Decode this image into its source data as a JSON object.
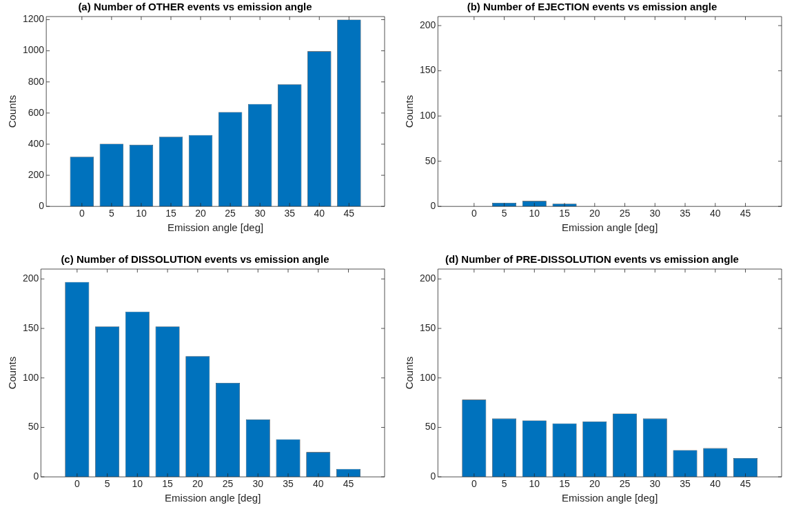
{
  "chart_data": [
    {
      "type": "bar",
      "title": "(a) Number of OTHER events vs emission angle",
      "xlabel": "Emission angle [deg]",
      "ylabel": "Counts",
      "x": [
        0,
        5,
        10,
        15,
        20,
        25,
        30,
        35,
        40,
        45
      ],
      "xlim": [
        -6,
        51
      ],
      "xticks": [
        0,
        5,
        10,
        15,
        20,
        25,
        30,
        35,
        40,
        45
      ],
      "ylim": [
        0,
        1220
      ],
      "yticks": [
        0,
        200,
        400,
        600,
        800,
        1000,
        1200
      ],
      "color": "#0072bd",
      "values": [
        319,
        402,
        396,
        448,
        459,
        606,
        658,
        785,
        997,
        1200
      ],
      "grid": false,
      "legend": false
    },
    {
      "type": "bar",
      "title": "(b) Number of EJECTION events vs emission angle",
      "xlabel": "Emission angle [deg]",
      "ylabel": "Counts",
      "x": [
        0,
        5,
        10,
        15,
        20,
        25,
        30,
        35,
        40,
        45
      ],
      "xlim": [
        -6,
        51
      ],
      "xticks": [
        0,
        5,
        10,
        15,
        20,
        25,
        30,
        35,
        40,
        45
      ],
      "ylim": [
        0,
        210
      ],
      "yticks": [
        0,
        50,
        100,
        150,
        200
      ],
      "color": "#0072bd",
      "values": [
        0,
        4,
        6,
        3,
        0,
        0,
        0,
        0,
        0,
        0
      ],
      "grid": false,
      "legend": false
    },
    {
      "type": "bar",
      "title": "(c) Number of DISSOLUTION events vs emission angle",
      "xlabel": "Emission angle [deg]",
      "ylabel": "Counts",
      "x": [
        0,
        5,
        10,
        15,
        20,
        25,
        30,
        35,
        40,
        45
      ],
      "xlim": [
        -6,
        51
      ],
      "xticks": [
        0,
        5,
        10,
        15,
        20,
        25,
        30,
        35,
        40,
        45
      ],
      "ylim": [
        0,
        210
      ],
      "yticks": [
        0,
        50,
        100,
        150,
        200
      ],
      "color": "#0072bd",
      "values": [
        197,
        152,
        167,
        152,
        122,
        95,
        58,
        38,
        25,
        8
      ],
      "grid": false,
      "legend": false
    },
    {
      "type": "bar",
      "title": "(d) Number of PRE-DISSOLUTION events vs emission angle",
      "xlabel": "Emission angle [deg]",
      "ylabel": "Counts",
      "x": [
        0,
        5,
        10,
        15,
        20,
        25,
        30,
        35,
        40,
        45
      ],
      "xlim": [
        -6,
        51
      ],
      "xticks": [
        0,
        5,
        10,
        15,
        20,
        25,
        30,
        35,
        40,
        45
      ],
      "ylim": [
        0,
        210
      ],
      "yticks": [
        0,
        50,
        100,
        150,
        200
      ],
      "color": "#0072bd",
      "values": [
        78,
        59,
        57,
        54,
        56,
        64,
        59,
        27,
        29,
        19
      ],
      "grid": false,
      "legend": false
    }
  ]
}
